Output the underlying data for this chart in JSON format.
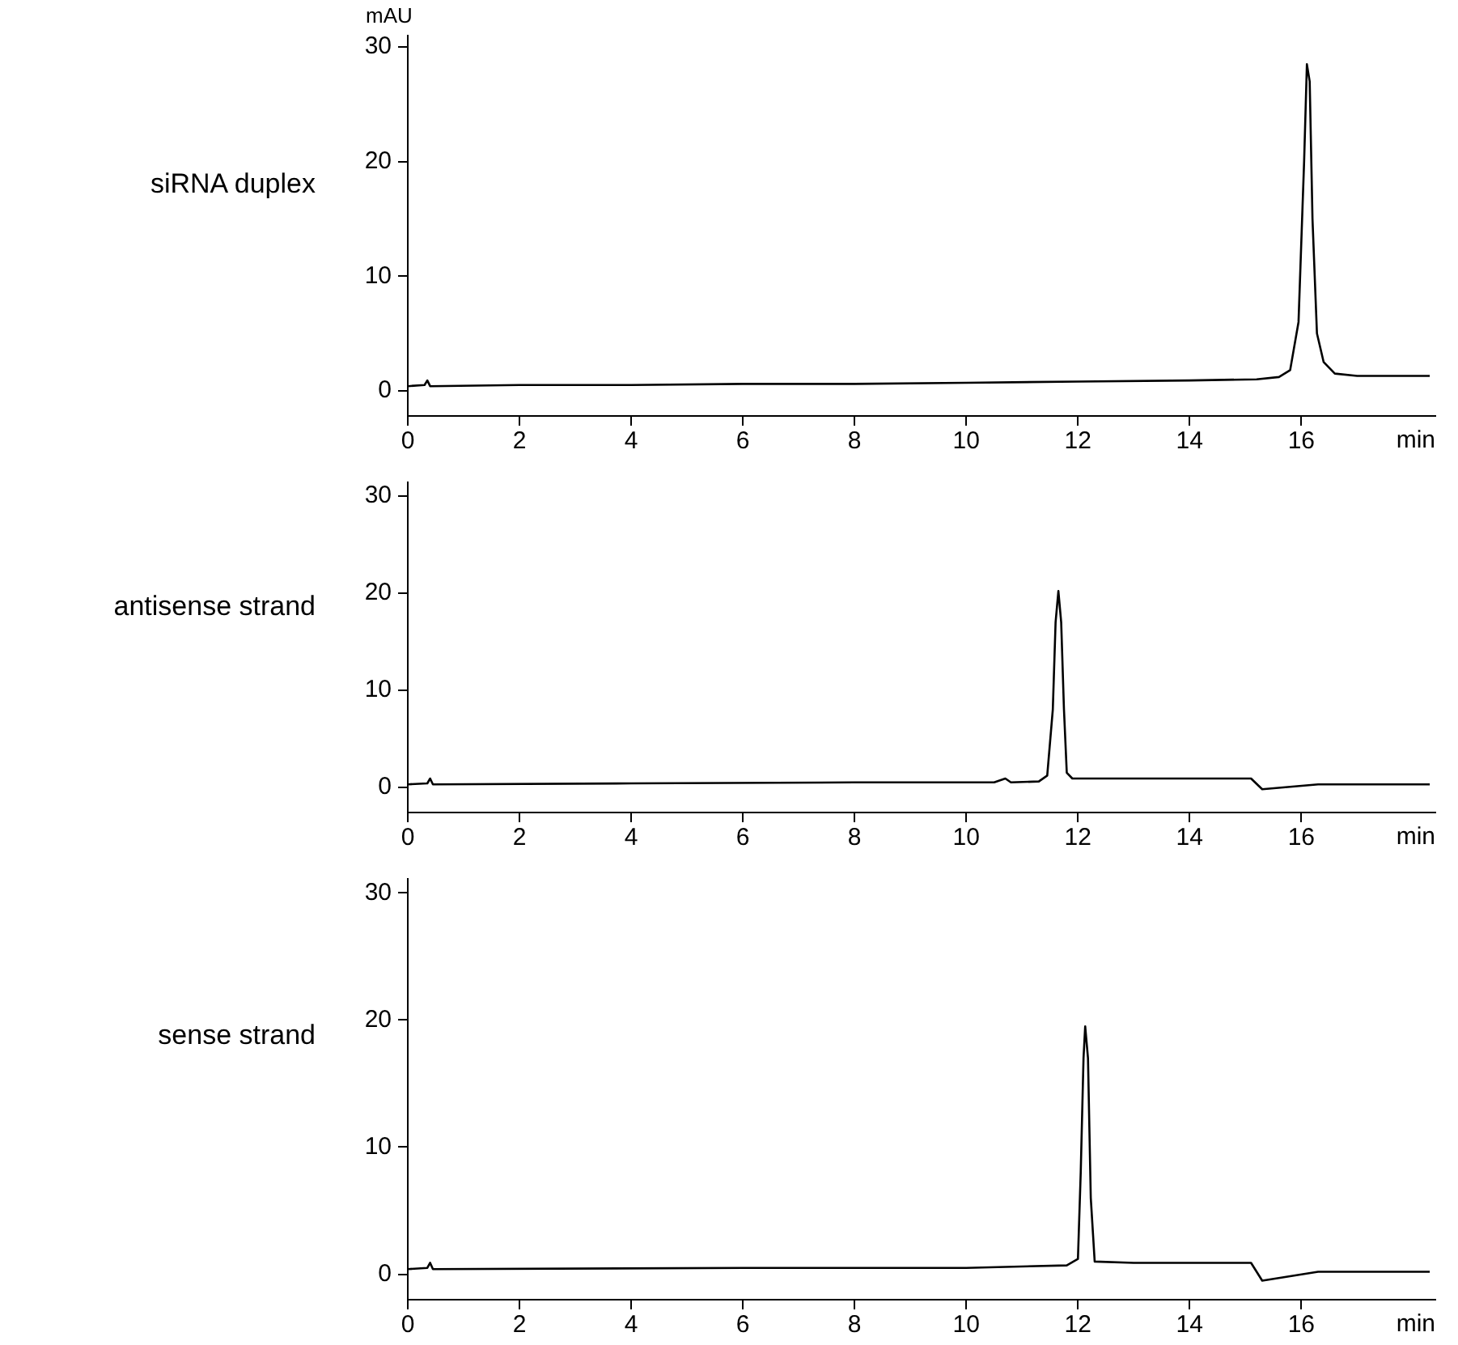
{
  "chart_data": [
    {
      "type": "line",
      "title": "siRNA duplex",
      "ylabel": "mAU",
      "xlabel": "min",
      "xlim": [
        0,
        18.4
      ],
      "xticks": [
        0,
        2,
        4,
        6,
        8,
        10,
        12,
        14,
        16
      ],
      "ylim": [
        -2.2,
        31
      ],
      "yticks": [
        0,
        10,
        20,
        30
      ],
      "grid": false,
      "legend": false,
      "marker": "none",
      "line_style": "solid",
      "series": [
        {
          "color": "#000000",
          "x": [
            0,
            0.3,
            0.35,
            0.4,
            2,
            4,
            6,
            8,
            10,
            12,
            14,
            15.2,
            15.6,
            15.8,
            15.95,
            16.05,
            16.1,
            16.15,
            16.2,
            16.28,
            16.4,
            16.6,
            17,
            18.3
          ],
          "values": [
            0.4,
            0.5,
            0.9,
            0.4,
            0.5,
            0.5,
            0.6,
            0.6,
            0.7,
            0.8,
            0.9,
            1.0,
            1.2,
            1.8,
            6,
            20,
            28.5,
            27,
            15,
            5,
            2.5,
            1.5,
            1.3,
            1.3
          ]
        }
      ]
    },
    {
      "type": "line",
      "title": "antisense strand",
      "xlabel": "min",
      "xlim": [
        0,
        18.4
      ],
      "xticks": [
        0,
        2,
        4,
        6,
        8,
        10,
        12,
        14,
        16
      ],
      "ylim": [
        -2.6,
        31.4
      ],
      "yticks": [
        0,
        10,
        20,
        30
      ],
      "grid": false,
      "legend": false,
      "marker": "none",
      "line_style": "solid",
      "series": [
        {
          "color": "#000000",
          "x": [
            0,
            0.35,
            0.4,
            0.45,
            4,
            8,
            10.5,
            10.7,
            10.8,
            11.3,
            11.45,
            11.55,
            11.6,
            11.65,
            11.7,
            11.75,
            11.8,
            11.9,
            13,
            15.1,
            15.3,
            16.3,
            18.3
          ],
          "values": [
            0.3,
            0.4,
            0.9,
            0.3,
            0.4,
            0.5,
            0.5,
            0.9,
            0.5,
            0.6,
            1.2,
            8,
            17,
            20.2,
            17,
            8,
            1.5,
            0.9,
            0.9,
            0.9,
            -0.2,
            0.3,
            0.3
          ]
        }
      ]
    },
    {
      "type": "line",
      "title": "sense strand",
      "xlabel": "min",
      "xlim": [
        0,
        18.4
      ],
      "xticks": [
        0,
        2,
        4,
        6,
        8,
        10,
        12,
        14,
        16
      ],
      "ylim": [
        -2,
        31.1
      ],
      "yticks": [
        0,
        10,
        20,
        30
      ],
      "grid": false,
      "legend": false,
      "marker": "none",
      "line_style": "solid",
      "series": [
        {
          "color": "#000000",
          "x": [
            0,
            0.35,
            0.4,
            0.45,
            6,
            10,
            11.8,
            12.0,
            12.05,
            12.1,
            12.13,
            12.18,
            12.23,
            12.3,
            13,
            15.1,
            15.3,
            16.3,
            18.3
          ],
          "values": [
            0.4,
            0.5,
            0.9,
            0.4,
            0.5,
            0.5,
            0.7,
            1.2,
            8,
            17,
            19.5,
            17,
            6,
            1.0,
            0.9,
            0.9,
            -0.5,
            0.2,
            0.2
          ]
        }
      ]
    }
  ]
}
